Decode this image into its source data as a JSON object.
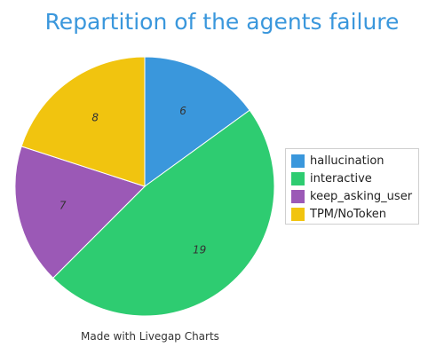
{
  "chart_data": {
    "type": "pie",
    "title": "Repartition of the agents failure",
    "categories": [
      "hallucination",
      "interactive",
      "keep_asking_user",
      "TPM/NoToken"
    ],
    "values": [
      6,
      19,
      7,
      8
    ],
    "colors": [
      "#3a97dc",
      "#2ecc71",
      "#9b59b6",
      "#f1c40f"
    ],
    "legend": "right"
  },
  "colors": {
    "title": "#3a97dc",
    "slice_border": "#ffffff",
    "value_label": "#333333"
  },
  "footer": {
    "credit": "Made with Livegap Charts"
  }
}
